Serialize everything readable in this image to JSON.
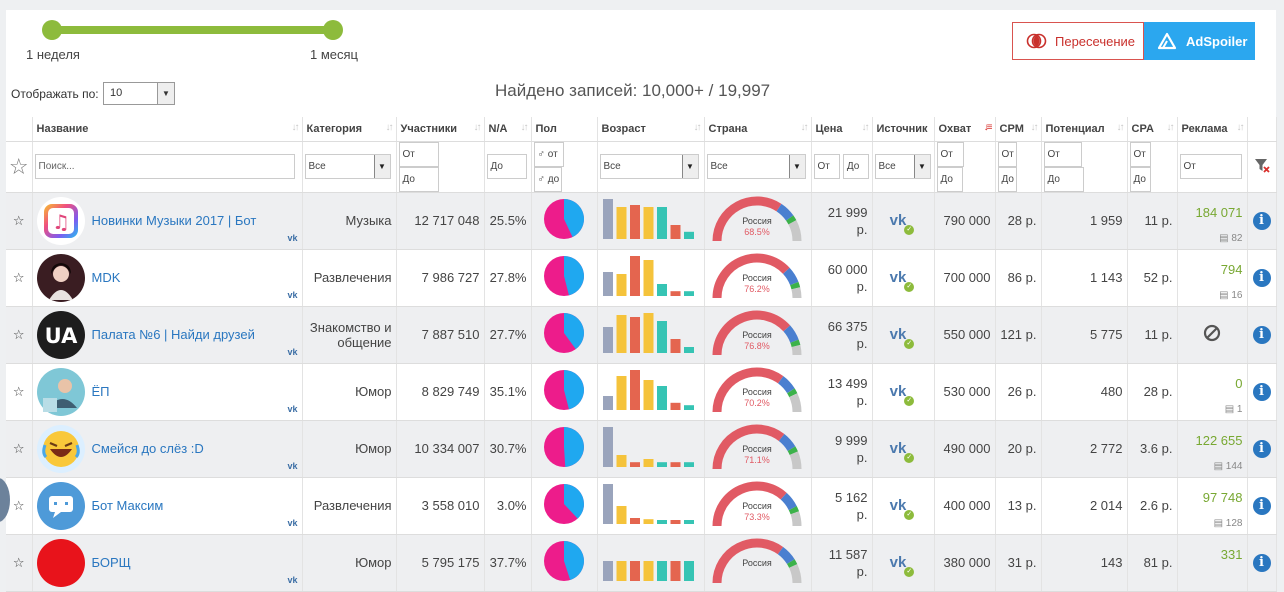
{
  "slider": {
    "left_label": "1 неделя",
    "right_label": "1 месяц"
  },
  "buttons": {
    "intersection": "Пересечение",
    "adspoiler": "AdSpoiler"
  },
  "display": {
    "label": "Отображать по:",
    "value": "10"
  },
  "found": "Найдено записей: 10,000+ / 19,997",
  "columns": [
    "Название",
    "Категория",
    "Участники",
    "N/A",
    "Пол",
    "Возраст",
    "Страна",
    "Цена",
    "Источник",
    "Охват",
    "CPM",
    "Потенциал",
    "CPA",
    "Реклама"
  ],
  "filters": {
    "search_placeholder": "Поиск...",
    "from": "От",
    "to": "До",
    "category": "Все",
    "age": "Все",
    "country": "Все",
    "source": "Все",
    "gender_from": "♂ от",
    "gender_to": "♂ до"
  },
  "colors": {
    "pie_male": "#1fa8f0",
    "pie_female": "#ed1c8b",
    "gauge_main": "#e15a64",
    "gauge_2": "#4a7fd0",
    "gauge_3": "#3cb24a",
    "gauge_4": "#c8c8c8",
    "bar_colors": [
      "#9aa4bc",
      "#f5c33b",
      "#e4654f",
      "#f5c33b",
      "#36c4b4",
      "#e4654f",
      "#36c4b4"
    ]
  },
  "rows": [
    {
      "name": "Новинки Музыки 2017 | Бот",
      "category": "Музыка",
      "members": "12 717 048",
      "na": "25.5%",
      "male": 0.43,
      "ages": [
        1,
        0.8,
        0.85,
        0.8,
        0.8,
        0.35,
        0.18
      ],
      "country": "Россия",
      "country_pct": "68.5%",
      "country_val": 68.5,
      "price": "21 999 р.",
      "reach": "790 000",
      "cpm": "28 р.",
      "potential": "1 959",
      "cpa": "11 р.",
      "ads": "184 071",
      "ads_count": "82",
      "avatar": "music"
    },
    {
      "name": "MDK",
      "category": "Развлечения",
      "members": "7 986 727",
      "na": "27.8%",
      "male": 0.46,
      "ages": [
        0.6,
        0.55,
        1,
        0.9,
        0.3,
        0.12,
        0.12
      ],
      "country": "Россия",
      "country_pct": "76.2%",
      "country_val": 76.2,
      "price": "60 000 р.",
      "reach": "700 000",
      "cpm": "86 р.",
      "potential": "1 143",
      "cpa": "52 р.",
      "ads": "794",
      "ads_count": "16",
      "avatar": "mdk"
    },
    {
      "name": "Палата №6 | Найди друзей",
      "category": "Знакомство и общение",
      "members": "7 887 510",
      "na": "27.7%",
      "male": 0.4,
      "ages": [
        0.65,
        0.95,
        0.9,
        1,
        0.8,
        0.35,
        0.15
      ],
      "country": "Россия",
      "country_pct": "76.8%",
      "country_val": 76.8,
      "price": "66 375 р.",
      "reach": "550 000",
      "cpm": "121 р.",
      "potential": "5 775",
      "cpa": "11 р.",
      "ads": "",
      "ads_count": "",
      "avatar": "ua"
    },
    {
      "name": "ЁП",
      "category": "Юмор",
      "members": "8 829 749",
      "na": "35.1%",
      "male": 0.46,
      "ages": [
        0.35,
        0.85,
        1,
        0.75,
        0.6,
        0.18,
        0.12
      ],
      "country": "Россия",
      "country_pct": "70.2%",
      "country_val": 70.2,
      "price": "13 499 р.",
      "reach": "530 000",
      "cpm": "26 р.",
      "potential": "480",
      "cpa": "28 р.",
      "ads": "0",
      "ads_count": "1",
      "avatar": "ep"
    },
    {
      "name": "Смейся до слёз :D",
      "category": "Юмор",
      "members": "10 334 007",
      "na": "30.7%",
      "male": 0.49,
      "ages": [
        1,
        0.3,
        0.12,
        0.2,
        0.12,
        0.12,
        0.12
      ],
      "country": "Россия",
      "country_pct": "71.1%",
      "country_val": 71.1,
      "price": "9 999 р.",
      "reach": "490 000",
      "cpm": "20 р.",
      "potential": "2 772",
      "cpa": "3.6 р.",
      "ads": "122 655",
      "ads_count": "144",
      "avatar": "laugh"
    },
    {
      "name": "Бот Максим",
      "category": "Развлечения",
      "members": "3 558 010",
      "na": "3.0%",
      "male": 0.38,
      "ages": [
        1,
        0.45,
        0.15,
        0.12,
        0.1,
        0.1,
        0.1
      ],
      "country": "Россия",
      "country_pct": "73.3%",
      "country_val": 73.3,
      "price": "5 162 р.",
      "reach": "400 000",
      "cpm": "13 р.",
      "potential": "2 014",
      "cpa": "2.6 р.",
      "ads": "97 748",
      "ads_count": "128",
      "avatar": "bot"
    },
    {
      "name": "БОРЩ",
      "category": "Юмор",
      "members": "5 795 175",
      "na": "37.7%",
      "male": 0.45,
      "ages": [
        0.5,
        0.5,
        0.5,
        0.5,
        0.5,
        0.5,
        0.5
      ],
      "country": "Россия",
      "country_pct": "",
      "country_val": 70,
      "price": "11 587 р.",
      "reach": "380 000",
      "cpm": "31 р.",
      "potential": "143",
      "cpa": "81 р.",
      "ads": "331",
      "ads_count": "",
      "avatar": "red"
    }
  ]
}
